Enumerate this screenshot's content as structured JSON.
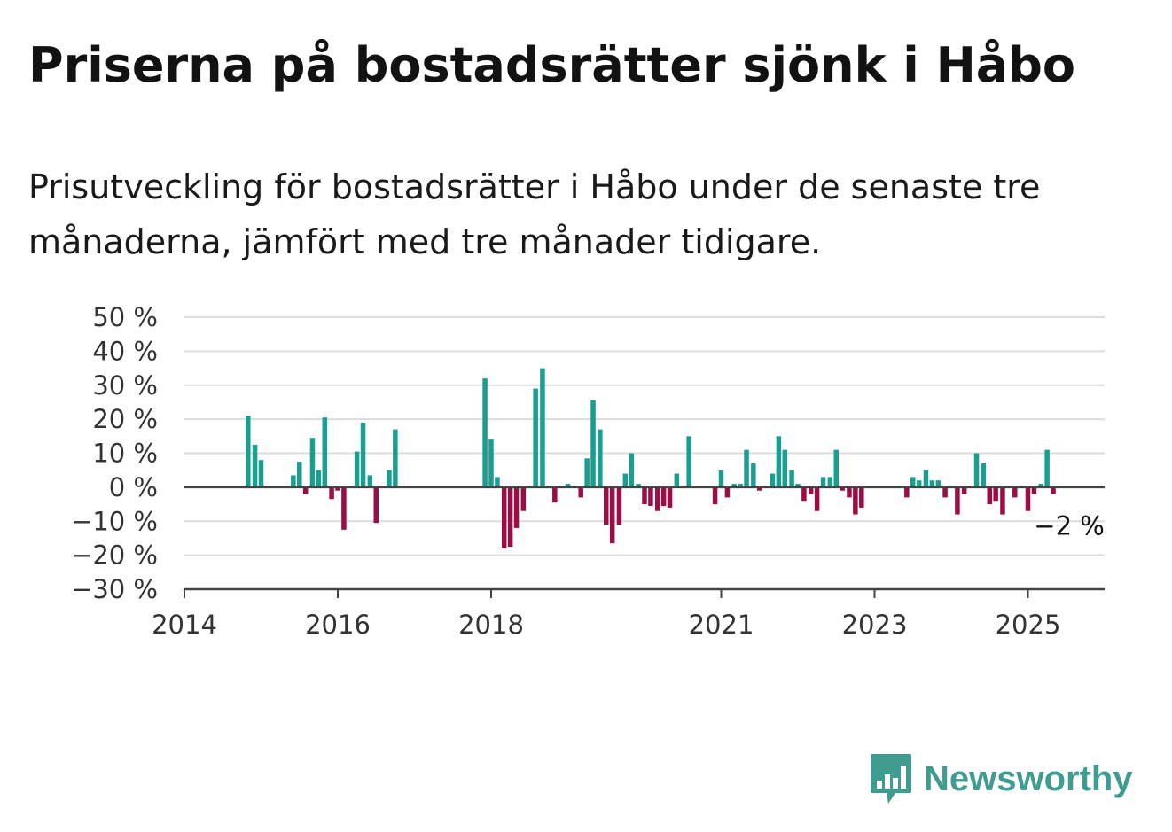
{
  "title": "Priserna på bostadsrätter sjönk i Håbo",
  "subtitle": "Prisutveckling för bostadsrätter i Håbo under de senaste tre månaderna, jämfört med tre månader tidigare.",
  "brand": {
    "name": "Newsworthy",
    "color": "#3f9c8e",
    "icon": "bar-chart-speech-bubble-icon"
  },
  "colors": {
    "positive": "#1a9e90",
    "negative": "#9c0c45",
    "grid": "#dcdcdc",
    "zero_line": "#444444"
  },
  "chart_data": {
    "type": "bar",
    "title": "Priserna på bostadsrätter sjönk i Håbo",
    "xlabel": "",
    "ylabel": "",
    "ylim": [
      -30,
      50
    ],
    "xlim": [
      2014.0,
      2026.0
    ],
    "grid": true,
    "legend": "none",
    "y_ticks": [
      {
        "value": 50,
        "label": "50 %"
      },
      {
        "value": 40,
        "label": "40 %"
      },
      {
        "value": 30,
        "label": "30 %"
      },
      {
        "value": 20,
        "label": "20 %"
      },
      {
        "value": 10,
        "label": "10 %"
      },
      {
        "value": 0,
        "label": "0 %"
      },
      {
        "value": -10,
        "label": "−10 %"
      },
      {
        "value": -20,
        "label": "−20 %"
      },
      {
        "value": -30,
        "label": "−30 %"
      }
    ],
    "x_ticks": [
      {
        "value": 2014,
        "label": "2014"
      },
      {
        "value": 2016,
        "label": "2016"
      },
      {
        "value": 2018,
        "label": "2018"
      },
      {
        "value": 2021,
        "label": "2021"
      },
      {
        "value": 2023,
        "label": "2023"
      },
      {
        "value": 2025,
        "label": "2025"
      }
    ],
    "annotation": {
      "x": 2025.33,
      "y": -2,
      "label": "−2 %"
    },
    "points": [
      {
        "x": 2014.83,
        "y": 21
      },
      {
        "x": 2014.92,
        "y": 12.5
      },
      {
        "x": 2015.0,
        "y": 8
      },
      {
        "x": 2015.42,
        "y": 3.5
      },
      {
        "x": 2015.5,
        "y": 7.5
      },
      {
        "x": 2015.58,
        "y": -2
      },
      {
        "x": 2015.67,
        "y": 14.5
      },
      {
        "x": 2015.75,
        "y": 5
      },
      {
        "x": 2015.83,
        "y": 20.5
      },
      {
        "x": 2015.92,
        "y": -3.5
      },
      {
        "x": 2016.0,
        "y": -1
      },
      {
        "x": 2016.08,
        "y": -12.5
      },
      {
        "x": 2016.25,
        "y": 10.5
      },
      {
        "x": 2016.33,
        "y": 19
      },
      {
        "x": 2016.42,
        "y": 3.5
      },
      {
        "x": 2016.5,
        "y": -10.5
      },
      {
        "x": 2016.67,
        "y": 5
      },
      {
        "x": 2016.75,
        "y": 17
      },
      {
        "x": 2017.92,
        "y": 32
      },
      {
        "x": 2018.0,
        "y": 14
      },
      {
        "x": 2018.08,
        "y": 3
      },
      {
        "x": 2018.17,
        "y": -18
      },
      {
        "x": 2018.25,
        "y": -17.5
      },
      {
        "x": 2018.33,
        "y": -12
      },
      {
        "x": 2018.42,
        "y": -7
      },
      {
        "x": 2018.58,
        "y": 29
      },
      {
        "x": 2018.67,
        "y": 35
      },
      {
        "x": 2018.83,
        "y": -4.5
      },
      {
        "x": 2019.0,
        "y": 1
      },
      {
        "x": 2019.17,
        "y": -3
      },
      {
        "x": 2019.25,
        "y": 8.5
      },
      {
        "x": 2019.33,
        "y": 25.5
      },
      {
        "x": 2019.42,
        "y": 17
      },
      {
        "x": 2019.5,
        "y": -11
      },
      {
        "x": 2019.58,
        "y": -16.5
      },
      {
        "x": 2019.67,
        "y": -11
      },
      {
        "x": 2019.75,
        "y": 4
      },
      {
        "x": 2019.83,
        "y": 10
      },
      {
        "x": 2019.92,
        "y": 1
      },
      {
        "x": 2020.0,
        "y": -5
      },
      {
        "x": 2020.08,
        "y": -5.5
      },
      {
        "x": 2020.17,
        "y": -7
      },
      {
        "x": 2020.25,
        "y": -5.5
      },
      {
        "x": 2020.33,
        "y": -6
      },
      {
        "x": 2020.42,
        "y": 4
      },
      {
        "x": 2020.58,
        "y": 15
      },
      {
        "x": 2020.92,
        "y": -5
      },
      {
        "x": 2021.0,
        "y": 5
      },
      {
        "x": 2021.08,
        "y": -3
      },
      {
        "x": 2021.17,
        "y": 1
      },
      {
        "x": 2021.25,
        "y": 1
      },
      {
        "x": 2021.33,
        "y": 11
      },
      {
        "x": 2021.42,
        "y": 7
      },
      {
        "x": 2021.5,
        "y": -1
      },
      {
        "x": 2021.67,
        "y": 4
      },
      {
        "x": 2021.75,
        "y": 15
      },
      {
        "x": 2021.83,
        "y": 11
      },
      {
        "x": 2021.92,
        "y": 5
      },
      {
        "x": 2022.0,
        "y": 1
      },
      {
        "x": 2022.08,
        "y": -4
      },
      {
        "x": 2022.17,
        "y": -2
      },
      {
        "x": 2022.25,
        "y": -7
      },
      {
        "x": 2022.33,
        "y": 3
      },
      {
        "x": 2022.42,
        "y": 3
      },
      {
        "x": 2022.5,
        "y": 11
      },
      {
        "x": 2022.58,
        "y": -1
      },
      {
        "x": 2022.67,
        "y": -3
      },
      {
        "x": 2022.75,
        "y": -8
      },
      {
        "x": 2022.83,
        "y": -6
      },
      {
        "x": 2023.42,
        "y": -3
      },
      {
        "x": 2023.5,
        "y": 3
      },
      {
        "x": 2023.58,
        "y": 2
      },
      {
        "x": 2023.67,
        "y": 5
      },
      {
        "x": 2023.75,
        "y": 2
      },
      {
        "x": 2023.83,
        "y": 2
      },
      {
        "x": 2023.92,
        "y": -3
      },
      {
        "x": 2024.08,
        "y": -8
      },
      {
        "x": 2024.17,
        "y": -2
      },
      {
        "x": 2024.33,
        "y": 10
      },
      {
        "x": 2024.42,
        "y": 7
      },
      {
        "x": 2024.5,
        "y": -5
      },
      {
        "x": 2024.58,
        "y": -4
      },
      {
        "x": 2024.67,
        "y": -8
      },
      {
        "x": 2024.83,
        "y": -3
      },
      {
        "x": 2025.0,
        "y": -7
      },
      {
        "x": 2025.08,
        "y": -2
      },
      {
        "x": 2025.17,
        "y": 1
      },
      {
        "x": 2025.25,
        "y": 11
      },
      {
        "x": 2025.33,
        "y": -2
      }
    ]
  }
}
